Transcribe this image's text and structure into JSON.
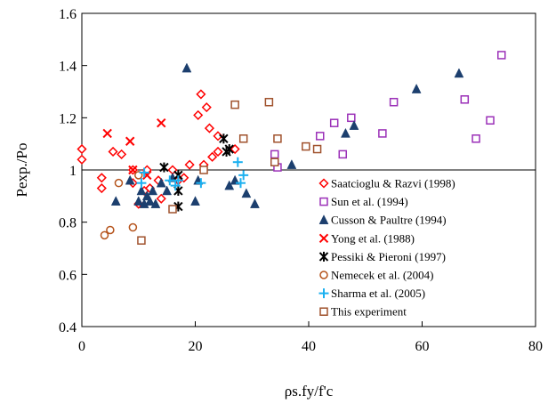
{
  "chart_data": {
    "type": "scatter",
    "xlabel": "ρs.fy/f'c",
    "ylabel": "Pexp./Po",
    "xlim": [
      0,
      80
    ],
    "ylim": [
      0.4,
      1.6
    ],
    "xticks": [
      0,
      20,
      40,
      60,
      80
    ],
    "yticks": [
      0.4,
      0.6,
      0.8,
      1.0,
      1.2,
      1.4,
      1.6
    ],
    "xtick_labels": [
      "0",
      "20",
      "40",
      "60",
      "80"
    ],
    "ytick_labels": [
      "0.4",
      "0.6",
      "0.8",
      "1",
      "1.2",
      "1.4",
      "1.6"
    ],
    "reference_line": {
      "y": 1.0
    },
    "grid": false,
    "legend_position": "right-center",
    "series": [
      {
        "name": "Saatcioglu & Razvi (1998)",
        "marker": "diamond-open",
        "color": "#ff0000",
        "points": [
          [
            0,
            1.08
          ],
          [
            0,
            1.04
          ],
          [
            3.5,
            0.97
          ],
          [
            3.5,
            0.93
          ],
          [
            5.5,
            1.07
          ],
          [
            7,
            1.06
          ],
          [
            9,
            0.95
          ],
          [
            9,
            1.0
          ],
          [
            10,
            0.87
          ],
          [
            11,
            0.92
          ],
          [
            11.5,
            1.0
          ],
          [
            12,
            0.93
          ],
          [
            13.5,
            0.96
          ],
          [
            14,
            0.89
          ],
          [
            16,
            1.0
          ],
          [
            17,
            0.96
          ],
          [
            18,
            0.97
          ],
          [
            19,
            1.02
          ],
          [
            20.5,
            1.21
          ],
          [
            21,
            1.29
          ],
          [
            21.5,
            1.02
          ],
          [
            22,
            1.24
          ],
          [
            22.5,
            1.16
          ],
          [
            23,
            1.05
          ],
          [
            24,
            1.13
          ],
          [
            24,
            1.07
          ],
          [
            27,
            1.08
          ]
        ]
      },
      {
        "name": "Sun et al. (1994)",
        "marker": "square-open",
        "color": "#9b30b8",
        "points": [
          [
            34,
            1.06
          ],
          [
            34.5,
            1.01
          ],
          [
            42,
            1.13
          ],
          [
            44.5,
            1.18
          ],
          [
            46,
            1.06
          ],
          [
            47.5,
            1.2
          ],
          [
            53,
            1.14
          ],
          [
            55,
            1.26
          ],
          [
            67.5,
            1.27
          ],
          [
            69.5,
            1.12
          ],
          [
            72,
            1.19
          ],
          [
            74,
            1.44
          ]
        ]
      },
      {
        "name": "Cusson & Paultre (1994)",
        "marker": "triangle-filled",
        "color": "#1c3f6e",
        "points": [
          [
            6,
            0.88
          ],
          [
            8.5,
            0.96
          ],
          [
            10,
            0.88
          ],
          [
            10.5,
            0.92
          ],
          [
            11,
            0.87
          ],
          [
            11.5,
            0.9
          ],
          [
            12,
            0.88
          ],
          [
            12.5,
            0.92
          ],
          [
            13,
            0.87
          ],
          [
            14,
            0.95
          ],
          [
            15,
            0.92
          ],
          [
            16,
            0.97
          ],
          [
            18.5,
            1.39
          ],
          [
            20,
            0.88
          ],
          [
            20.5,
            0.96
          ],
          [
            26,
            0.94
          ],
          [
            27,
            0.96
          ],
          [
            29,
            0.91
          ],
          [
            30.5,
            0.87
          ],
          [
            37,
            1.02
          ],
          [
            46.5,
            1.14
          ],
          [
            48,
            1.17
          ],
          [
            59,
            1.31
          ],
          [
            66.5,
            1.37
          ]
        ]
      },
      {
        "name": "Yong et al. (1988)",
        "marker": "x-cross",
        "color": "#ff0000",
        "points": [
          [
            4.5,
            1.14
          ],
          [
            8.5,
            1.11
          ],
          [
            9,
            1.0
          ],
          [
            11.5,
            0.98
          ],
          [
            14,
            1.18
          ]
        ]
      },
      {
        "name": "Pessiki & Pieroni (1997)",
        "marker": "asterisk",
        "color": "#000000",
        "points": [
          [
            14.5,
            1.01
          ],
          [
            17,
            0.98
          ],
          [
            17,
            0.92
          ],
          [
            17,
            0.86
          ],
          [
            25,
            1.12
          ],
          [
            25.5,
            1.07
          ],
          [
            26,
            1.08
          ]
        ]
      },
      {
        "name": "Nemecek et al. (2004)",
        "marker": "circle-open",
        "color": "#b5531b",
        "points": [
          [
            4,
            0.75
          ],
          [
            5,
            0.77
          ],
          [
            6.5,
            0.95
          ],
          [
            9,
            0.78
          ],
          [
            10,
            0.98
          ]
        ]
      },
      {
        "name": "Sharma et al. (2005)",
        "marker": "plus",
        "color": "#1ab0f0",
        "points": [
          [
            10.5,
            0.95
          ],
          [
            11,
            0.99
          ],
          [
            15.5,
            0.96
          ],
          [
            16.5,
            0.94
          ],
          [
            17,
            0.96
          ],
          [
            21,
            0.95
          ],
          [
            27.5,
            1.03
          ],
          [
            28,
            0.95
          ],
          [
            28.5,
            0.98
          ]
        ]
      },
      {
        "name": "This experiment",
        "marker": "square-open",
        "color": "#a0522d",
        "points": [
          [
            10.5,
            0.73
          ],
          [
            16,
            0.85
          ],
          [
            21.5,
            1.0
          ],
          [
            27,
            1.25
          ],
          [
            28.5,
            1.12
          ],
          [
            33,
            1.26
          ],
          [
            34,
            1.03
          ],
          [
            34.5,
            1.12
          ],
          [
            39.5,
            1.09
          ],
          [
            41.5,
            1.08
          ]
        ]
      }
    ]
  }
}
